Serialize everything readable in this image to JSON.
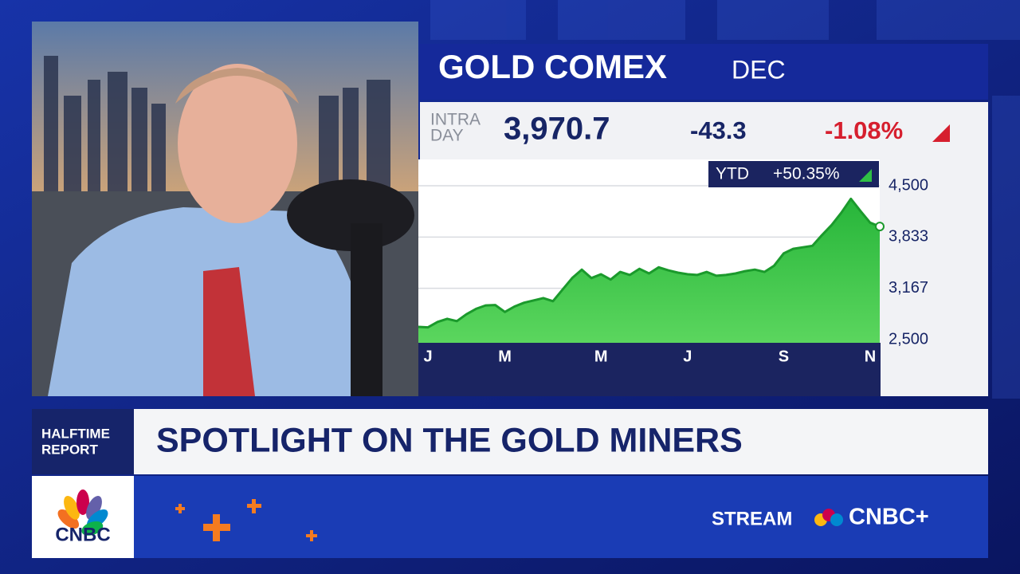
{
  "chart_data": {
    "type": "area",
    "title": "GOLD COMEX",
    "contract": "DEC",
    "quote": {
      "label_lines": [
        "INTRA",
        "DAY"
      ],
      "price": "3,970.7",
      "change": "-43.3",
      "percent": "-1.08%"
    },
    "badge": {
      "label": "YTD",
      "value": "+50.35%"
    },
    "categories": [
      null,
      "J",
      null,
      null,
      null,
      null,
      null,
      null,
      null,
      "M",
      null,
      null,
      null,
      null,
      null,
      null,
      null,
      null,
      null,
      "M",
      null,
      null,
      null,
      null,
      null,
      null,
      null,
      null,
      "J",
      null,
      null,
      null,
      null,
      null,
      null,
      null,
      null,
      null,
      "S",
      null,
      null,
      null,
      null,
      null,
      null,
      null,
      null,
      "N",
      null
    ],
    "values": [
      2666,
      2660,
      2730,
      2770,
      2740,
      2830,
      2900,
      2945,
      2950,
      2860,
      2930,
      2980,
      3010,
      3040,
      3000,
      3150,
      3300,
      3410,
      3300,
      3350,
      3280,
      3380,
      3340,
      3420,
      3360,
      3440,
      3400,
      3370,
      3350,
      3340,
      3380,
      3330,
      3340,
      3360,
      3390,
      3410,
      3380,
      3460,
      3620,
      3680,
      3700,
      3720,
      3860,
      3990,
      4150,
      4330,
      4170,
      4020,
      3970.7
    ],
    "color": "#1b9a2c",
    "ylim": [
      2500,
      4500
    ],
    "yticks": [
      {
        "value": 2500,
        "label": "2,500"
      },
      {
        "value": 3167,
        "label": "3,167"
      },
      {
        "value": 3833,
        "label": "3,833"
      },
      {
        "value": 4500,
        "label": "4,500"
      }
    ],
    "grid": true
  },
  "lower_third": {
    "show_lines": [
      "HALFTIME",
      "REPORT"
    ],
    "headline": "SPOTLIGHT ON THE GOLD MINERS",
    "logo": "CNBC",
    "stream": "STREAM",
    "stream_brand": "CNBC+"
  }
}
